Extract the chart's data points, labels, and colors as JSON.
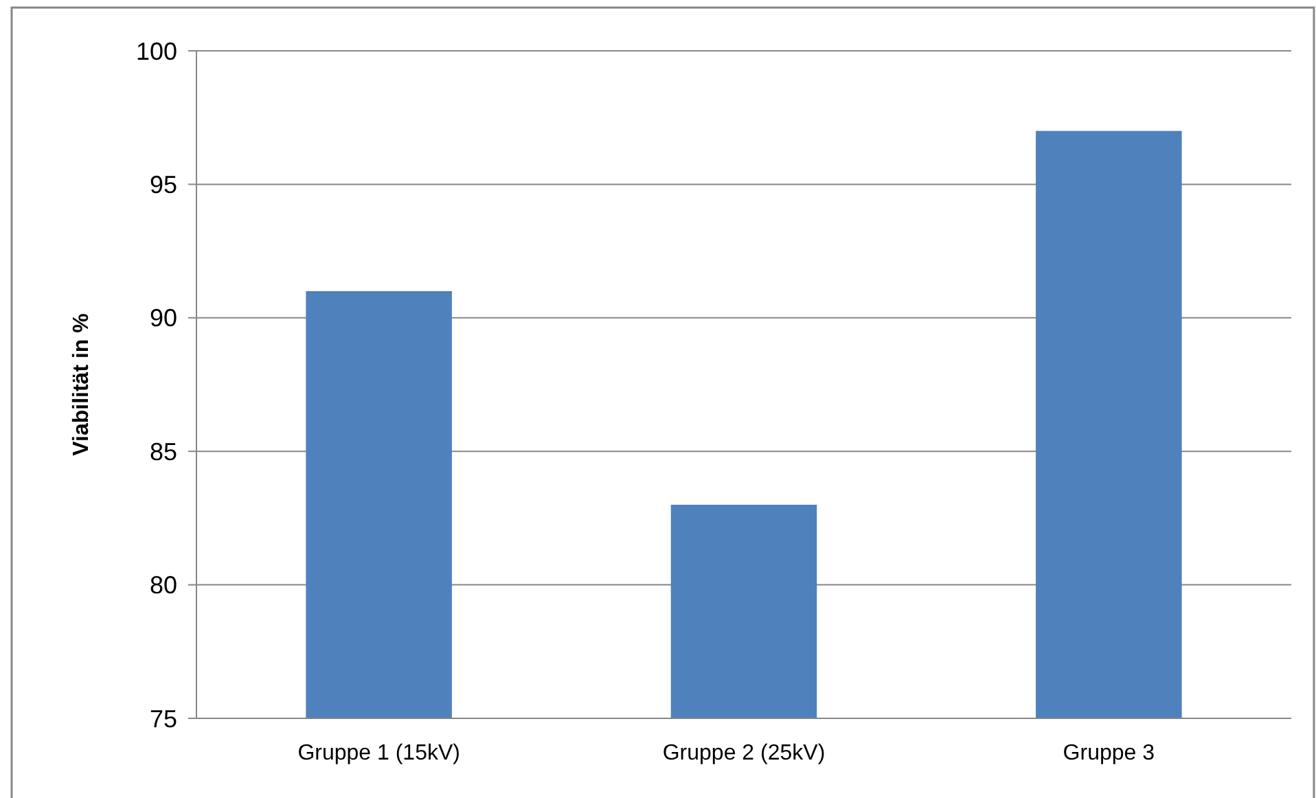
{
  "chart_data": {
    "type": "bar",
    "ylabel": "Viabilität in %",
    "categories": [
      "Gruppe 1 (15kV)",
      "Gruppe 2 (25kV)",
      "Gruppe 3"
    ],
    "values": [
      91,
      83,
      97
    ],
    "color": "#4f81bd",
    "ylim": [
      75,
      100
    ],
    "yticks": [
      75,
      80,
      85,
      90,
      95,
      100
    ],
    "grid": "y"
  }
}
